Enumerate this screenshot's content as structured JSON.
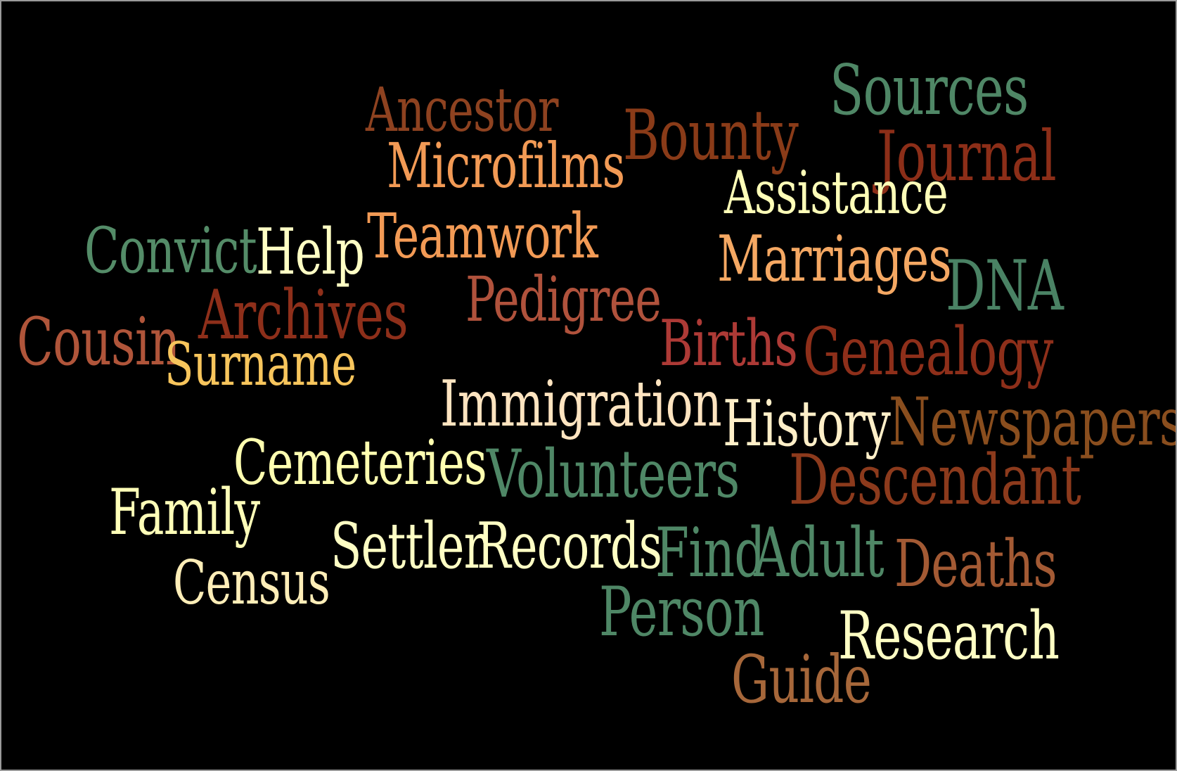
{
  "palette": {
    "background": "#000000",
    "frame": "#9a9a9a"
  },
  "words": [
    {
      "id": "ancestor",
      "text": "Ancestor",
      "color": "#8e4220"
    },
    {
      "id": "sources",
      "text": "Sources",
      "color": "#4f8766"
    },
    {
      "id": "bounty",
      "text": "Bounty",
      "color": "#8a3b18"
    },
    {
      "id": "journal",
      "text": "Journal",
      "color": "#8c2e18"
    },
    {
      "id": "microfilms",
      "text": "Microfilms",
      "color": "#f29a55"
    },
    {
      "id": "assistance",
      "text": "Assistance",
      "color": "#ffffb8"
    },
    {
      "id": "convict",
      "text": "Convict",
      "color": "#548c68"
    },
    {
      "id": "help",
      "text": "Help",
      "color": "#ffffc4"
    },
    {
      "id": "teamwork",
      "text": "Teamwork",
      "color": "#f29a55"
    },
    {
      "id": "marriages",
      "text": "Marriages",
      "color": "#f5a863"
    },
    {
      "id": "dna",
      "text": "DNA",
      "color": "#4a8264"
    },
    {
      "id": "pedigree",
      "text": "Pedigree",
      "color": "#b0523c"
    },
    {
      "id": "archives",
      "text": "Archives",
      "color": "#8e2f1a"
    },
    {
      "id": "cousin",
      "text": "Cousin",
      "color": "#b0553a"
    },
    {
      "id": "births",
      "text": "Births",
      "color": "#ad3a36"
    },
    {
      "id": "genealogy",
      "text": "Genealogy",
      "color": "#8e2f1a"
    },
    {
      "id": "surname",
      "text": "Surname",
      "color": "#f7c55c"
    },
    {
      "id": "immigration",
      "text": "Immigration",
      "color": "#ffe4c0"
    },
    {
      "id": "history",
      "text": "History",
      "color": "#ffefc8"
    },
    {
      "id": "newspapers",
      "text": "Newspapers",
      "color": "#8a4e1e"
    },
    {
      "id": "cemeteries",
      "text": "Cemeteries",
      "color": "#ffffb0"
    },
    {
      "id": "volunteers",
      "text": "Volunteers",
      "color": "#4f8766"
    },
    {
      "id": "descendant",
      "text": "Descendant",
      "color": "#8c3a1c"
    },
    {
      "id": "family",
      "text": "Family",
      "color": "#ffffb8"
    },
    {
      "id": "settler",
      "text": "Settler",
      "color": "#ffffc4"
    },
    {
      "id": "records",
      "text": "Records",
      "color": "#ffffc4"
    },
    {
      "id": "find",
      "text": "Find",
      "color": "#4f8766"
    },
    {
      "id": "adult",
      "text": "Adult",
      "color": "#4f8766"
    },
    {
      "id": "deaths",
      "text": "Deaths",
      "color": "#a35a34"
    },
    {
      "id": "census",
      "text": "Census",
      "color": "#ffeeb8"
    },
    {
      "id": "person",
      "text": "Person",
      "color": "#4f8766"
    },
    {
      "id": "research",
      "text": "Research",
      "color": "#ffffc4"
    },
    {
      "id": "guide",
      "text": "Guide",
      "color": "#a6673a"
    }
  ]
}
